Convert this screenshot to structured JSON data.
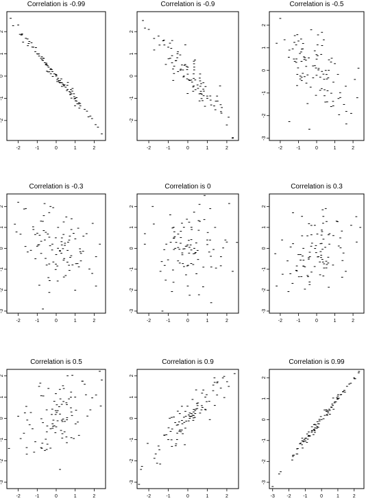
{
  "chart_data": [
    {
      "type": "scatter",
      "title": "Correlation is -0.99",
      "xlim": [
        -2.6,
        2.6
      ],
      "ylim": [
        -2.9,
        2.9
      ],
      "x_ticks": [
        "-2",
        "-1",
        "0",
        "1",
        "2"
      ],
      "y_ticks": [
        "2",
        "1",
        "0",
        "-1",
        "-2"
      ],
      "n_points": 100,
      "points": [
        [
          -2.4,
          2.6
        ],
        [
          -2.0,
          2.3
        ],
        [
          -1.8,
          1.9
        ],
        [
          -1.6,
          1.7
        ],
        [
          -1.3,
          1.5
        ],
        [
          -1.2,
          1.3
        ],
        [
          -1.1,
          1.1
        ],
        [
          -1.0,
          1.0
        ],
        [
          -0.9,
          0.9
        ],
        [
          -0.8,
          0.8
        ],
        [
          -0.7,
          0.7
        ],
        [
          -0.6,
          0.6
        ],
        [
          -0.5,
          0.5
        ],
        [
          -0.4,
          0.4
        ],
        [
          -0.3,
          0.3
        ],
        [
          -0.2,
          0.2
        ],
        [
          -0.1,
          0.1
        ],
        [
          0.0,
          0.0
        ],
        [
          0.1,
          -0.1
        ],
        [
          0.2,
          -0.2
        ],
        [
          0.3,
          -0.3
        ],
        [
          0.4,
          -0.4
        ],
        [
          0.5,
          -0.5
        ],
        [
          0.6,
          -0.6
        ],
        [
          0.7,
          -0.7
        ],
        [
          0.8,
          -0.8
        ],
        [
          1.0,
          -1.0
        ],
        [
          1.2,
          -1.2
        ],
        [
          1.5,
          -1.5
        ],
        [
          1.8,
          -1.8
        ],
        [
          2.2,
          -2.3
        ],
        [
          2.4,
          -2.6
        ]
      ]
    },
    {
      "type": "scatter",
      "title": "Correlation is -0.9",
      "xlim": [
        -2.6,
        2.6
      ],
      "ylim": [
        -2.9,
        2.9
      ],
      "x_ticks": [
        "-2",
        "-1",
        "0",
        "1",
        "2"
      ],
      "y_ticks": [
        "2",
        "1",
        "0",
        "-1",
        "-2"
      ],
      "n_points": 100,
      "points": [
        [
          -2.3,
          2.5
        ],
        [
          -2.0,
          2.1
        ],
        [
          -1.5,
          1.8
        ],
        [
          -1.2,
          1.4
        ],
        [
          -1.0,
          1.3
        ],
        [
          -0.9,
          0.8
        ],
        [
          -0.8,
          1.6
        ],
        [
          -0.6,
          0.7
        ],
        [
          -0.5,
          0.2
        ],
        [
          -0.3,
          0.5
        ],
        [
          -0.2,
          0.0
        ],
        [
          0.0,
          0.4
        ],
        [
          0.1,
          -0.2
        ],
        [
          0.3,
          0.1
        ],
        [
          0.5,
          -0.4
        ],
        [
          0.6,
          -0.8
        ],
        [
          0.8,
          -0.3
        ],
        [
          1.0,
          -1.0
        ],
        [
          1.2,
          -1.3
        ],
        [
          1.5,
          -0.9
        ],
        [
          1.7,
          -1.6
        ],
        [
          2.0,
          -2.2
        ],
        [
          2.3,
          -2.8
        ]
      ]
    },
    {
      "type": "scatter",
      "title": "Correlation is -0.5",
      "xlim": [
        -2.6,
        2.6
      ],
      "ylim": [
        -3.1,
        2.6
      ],
      "x_ticks": [
        "-2",
        "-1",
        "0",
        "1",
        "2"
      ],
      "y_ticks": [
        "2",
        "1",
        "0",
        "-1",
        "-2",
        "-3"
      ],
      "n_points": 100,
      "points": [
        [
          -2.2,
          1.2
        ],
        [
          -2.0,
          2.3
        ],
        [
          -1.5,
          0.9
        ],
        [
          -1.2,
          0.4
        ],
        [
          -1.0,
          1.3
        ],
        [
          -0.7,
          0.6
        ],
        [
          -0.5,
          -0.2
        ],
        [
          -0.3,
          1.8
        ],
        [
          -0.2,
          0.2
        ],
        [
          0.0,
          0.5
        ],
        [
          0.2,
          -0.3
        ],
        [
          0.3,
          1.1
        ],
        [
          0.5,
          0.0
        ],
        [
          0.6,
          -0.9
        ],
        [
          0.8,
          -1.6
        ],
        [
          1.0,
          0.3
        ],
        [
          1.3,
          -1.2
        ],
        [
          1.6,
          -0.7
        ],
        [
          1.9,
          -1.9
        ],
        [
          2.1,
          -0.4
        ],
        [
          2.3,
          0.1
        ],
        [
          -0.4,
          -2.6
        ]
      ]
    },
    {
      "type": "scatter",
      "title": "Correlation is -0.3",
      "xlim": [
        -2.6,
        2.6
      ],
      "ylim": [
        -3.1,
        2.6
      ],
      "x_ticks": [
        "-2",
        "-1",
        "0",
        "1",
        "2"
      ],
      "y_ticks": [
        "2",
        "1",
        "0",
        "-1",
        "-2",
        "-3"
      ],
      "n_points": 100,
      "points": [
        [
          -2.0,
          2.2
        ],
        [
          -1.6,
          1.9
        ],
        [
          -1.2,
          0.9
        ],
        [
          -1.0,
          0.1
        ],
        [
          -0.8,
          1.3
        ],
        [
          -0.6,
          0.4
        ],
        [
          -0.5,
          -0.8
        ],
        [
          -0.3,
          2.0
        ],
        [
          -0.2,
          0.2
        ],
        [
          0.0,
          -0.3
        ],
        [
          0.1,
          1.0
        ],
        [
          0.3,
          0.5
        ],
        [
          0.5,
          -1.3
        ],
        [
          0.6,
          -0.1
        ],
        [
          0.8,
          0.9
        ],
        [
          1.0,
          -2.0
        ],
        [
          1.3,
          -0.6
        ],
        [
          1.6,
          0.7
        ],
        [
          1.9,
          -1.2
        ],
        [
          2.1,
          -0.4
        ],
        [
          2.3,
          0.2
        ],
        [
          -0.7,
          -2.9
        ]
      ]
    },
    {
      "type": "scatter",
      "title": "Correlation is 0",
      "xlim": [
        -2.6,
        2.6
      ],
      "ylim": [
        -3.1,
        2.6
      ],
      "x_ticks": [
        "-2",
        "-1",
        "0",
        "1",
        "2"
      ],
      "y_ticks": [
        "2",
        "1",
        "0",
        "-1",
        "-2",
        "-3"
      ],
      "n_points": 100,
      "points": [
        [
          -2.2,
          0.7
        ],
        [
          -1.8,
          2.0
        ],
        [
          -1.4,
          -1.1
        ],
        [
          -1.1,
          0.2
        ],
        [
          -0.9,
          1.6
        ],
        [
          -0.7,
          0.5
        ],
        [
          -0.5,
          -0.6
        ],
        [
          -0.3,
          1.2
        ],
        [
          -0.1,
          0.1
        ],
        [
          0.0,
          -1.8
        ],
        [
          0.2,
          0.9
        ],
        [
          0.4,
          -0.2
        ],
        [
          0.6,
          2.1
        ],
        [
          0.8,
          -0.9
        ],
        [
          1.0,
          0.4
        ],
        [
          1.2,
          -2.6
        ],
        [
          1.4,
          1.0
        ],
        [
          1.7,
          -0.4
        ],
        [
          2.0,
          0.3
        ],
        [
          2.3,
          -1.1
        ],
        [
          -1.3,
          -3.0
        ]
      ]
    },
    {
      "type": "scatter",
      "title": "Correlation is 0.3",
      "xlim": [
        -2.6,
        2.6
      ],
      "ylim": [
        -3.1,
        2.6
      ],
      "x_ticks": [
        "-2",
        "-1",
        "0",
        "1",
        "2"
      ],
      "y_ticks": [
        "2",
        "1",
        "0",
        "-1",
        "-2",
        "-3"
      ],
      "n_points": 100,
      "points": [
        [
          -2.2,
          -1.8
        ],
        [
          -1.9,
          0.4
        ],
        [
          -1.6,
          -0.6
        ],
        [
          -1.3,
          1.7
        ],
        [
          -1.0,
          -0.3
        ],
        [
          -0.8,
          0.6
        ],
        [
          -0.5,
          -1.3
        ],
        [
          -0.3,
          0.1
        ],
        [
          -0.1,
          1.1
        ],
        [
          0.1,
          -0.4
        ],
        [
          0.3,
          0.8
        ],
        [
          0.5,
          1.9
        ],
        [
          0.7,
          0.2
        ],
        [
          0.9,
          -0.8
        ],
        [
          1.1,
          1.3
        ],
        [
          1.3,
          0.5
        ],
        [
          1.6,
          -1.1
        ],
        [
          1.9,
          1.1
        ],
        [
          2.2,
          0.3
        ],
        [
          2.4,
          1.0
        ],
        [
          -1.5,
          -3.1
        ]
      ]
    },
    {
      "type": "scatter",
      "title": "Correlation is 0.5",
      "xlim": [
        -2.6,
        2.6
      ],
      "ylim": [
        -3.3,
        2.3
      ],
      "x_ticks": [
        "-2",
        "-1",
        "0",
        "1",
        "2"
      ],
      "y_ticks": [
        "2",
        "1",
        "0",
        "-1",
        "-2",
        "-3"
      ],
      "n_points": 100,
      "points": [
        [
          -2.2,
          -3.3
        ],
        [
          -2.0,
          0.1
        ],
        [
          -1.7,
          -0.7
        ],
        [
          -1.4,
          -0.3
        ],
        [
          -1.1,
          -1.1
        ],
        [
          -0.9,
          1.5
        ],
        [
          -0.7,
          -0.2
        ],
        [
          -0.5,
          0.4
        ],
        [
          -0.3,
          -1.4
        ],
        [
          -0.1,
          0.8
        ],
        [
          0.0,
          -0.4
        ],
        [
          0.2,
          0.2
        ],
        [
          0.4,
          1.4
        ],
        [
          0.6,
          2.0
        ],
        [
          0.8,
          0.3
        ],
        [
          1.0,
          1.0
        ],
        [
          1.2,
          -0.8
        ],
        [
          1.5,
          1.6
        ],
        [
          1.8,
          0.4
        ],
        [
          2.1,
          1.1
        ],
        [
          2.4,
          1.8
        ],
        [
          0.2,
          -2.4
        ]
      ]
    },
    {
      "type": "scatter",
      "title": "Correlation is 0.9",
      "xlim": [
        -2.6,
        2.6
      ],
      "ylim": [
        -3.3,
        2.3
      ],
      "x_ticks": [
        "-2",
        "-1",
        "0",
        "1",
        "2"
      ],
      "y_ticks": [
        "2",
        "1",
        "0",
        "-1",
        "-2",
        "-3"
      ],
      "n_points": 100,
      "points": [
        [
          -2.5,
          -3.1
        ],
        [
          -2.4,
          -2.4
        ],
        [
          -1.5,
          -1.3
        ],
        [
          -1.2,
          -0.8
        ],
        [
          -1.0,
          -1.0
        ],
        [
          -0.8,
          -0.5
        ],
        [
          -0.6,
          -1.2
        ],
        [
          -0.5,
          -0.3
        ],
        [
          -0.3,
          -0.1
        ],
        [
          -0.1,
          0.1
        ],
        [
          0.1,
          0.0
        ],
        [
          0.3,
          0.3
        ],
        [
          0.5,
          0.6
        ],
        [
          0.7,
          0.4
        ],
        [
          0.9,
          1.0
        ],
        [
          1.1,
          0.8
        ],
        [
          1.3,
          1.3
        ],
        [
          1.5,
          1.1
        ],
        [
          1.8,
          1.9
        ],
        [
          2.1,
          1.5
        ],
        [
          2.4,
          2.1
        ]
      ]
    },
    {
      "type": "scatter",
      "title": "Correlation is 0.99",
      "xlim": [
        -3.2,
        2.6
      ],
      "ylim": [
        -3.3,
        2.4
      ],
      "x_ticks": [
        "-3",
        "-2",
        "-1",
        "0",
        "1",
        "2"
      ],
      "y_ticks": [
        "2",
        "1",
        "0",
        "-1",
        "-2",
        "-3"
      ],
      "n_points": 100,
      "points": [
        [
          -3.0,
          -3.2
        ],
        [
          -2.6,
          -2.6
        ],
        [
          -1.7,
          -1.7
        ],
        [
          -1.5,
          -1.4
        ],
        [
          -1.2,
          -1.2
        ],
        [
          -1.0,
          -0.9
        ],
        [
          -0.8,
          -0.8
        ],
        [
          -0.6,
          -0.6
        ],
        [
          -0.4,
          -0.4
        ],
        [
          -0.2,
          -0.2
        ],
        [
          0.0,
          0.0
        ],
        [
          0.2,
          0.2
        ],
        [
          0.4,
          0.4
        ],
        [
          0.6,
          0.6
        ],
        [
          0.8,
          0.8
        ],
        [
          1.0,
          1.0
        ],
        [
          1.2,
          1.2
        ],
        [
          1.4,
          1.4
        ],
        [
          1.7,
          1.7
        ],
        [
          2.0,
          2.0
        ],
        [
          2.3,
          2.3
        ]
      ]
    }
  ]
}
